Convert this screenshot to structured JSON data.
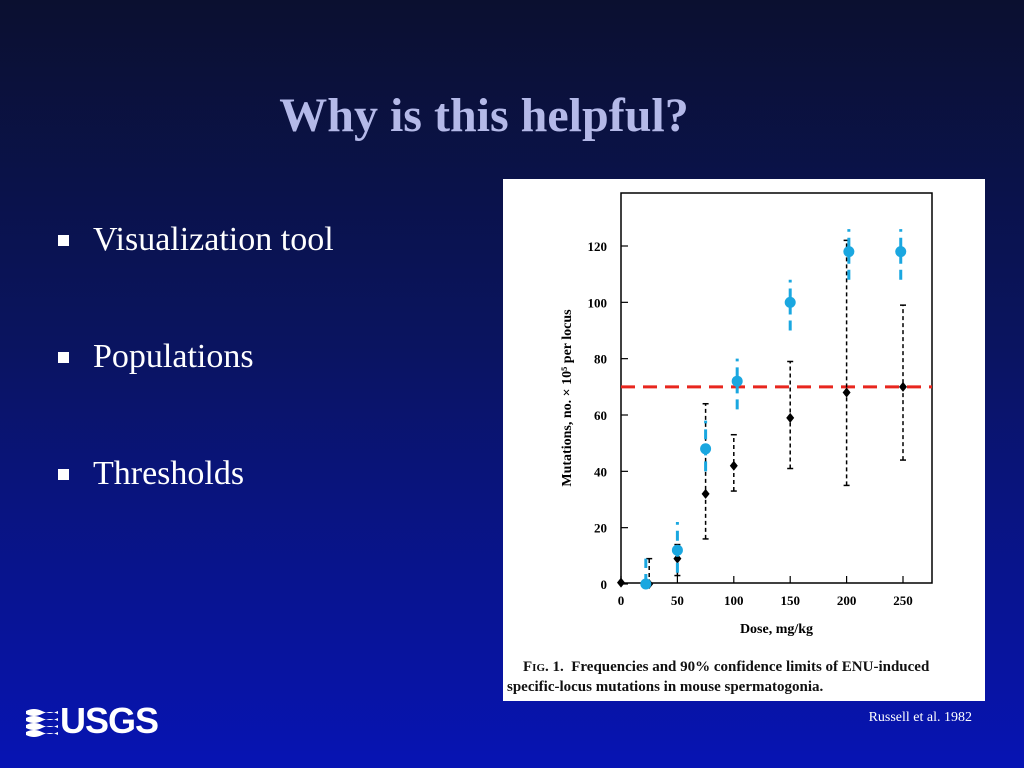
{
  "slide": {
    "title": "Why is this helpful?",
    "bullets": [
      "Visualization tool",
      "Populations",
      "Thresholds"
    ],
    "citation": "Russell et al. 1982",
    "logo_text": "USGS"
  },
  "colors": {
    "title": "#b4b9e8",
    "text": "#ffffff",
    "highlight_series": "#1aa7e0",
    "threshold_line": "#e8261e",
    "original_series": "#000000"
  },
  "figure": {
    "caption_label": "Fig. 1.",
    "caption_text": "Frequencies and 90% confidence limits of ENU-induced specific-locus mutations in mouse spermatogonia."
  },
  "chart_data": {
    "type": "scatter",
    "xlabel": "Dose, mg/kg",
    "ylabel": "Mutations, no. × 10⁵ per locus",
    "xlim": [
      0,
      275
    ],
    "ylim": [
      0,
      135
    ],
    "xticks": [
      0,
      50,
      100,
      150,
      200,
      250
    ],
    "yticks": [
      0,
      20,
      40,
      60,
      80,
      100,
      120
    ],
    "grid": false,
    "threshold": {
      "y": 70,
      "style": "dashed",
      "color": "#e8261e"
    },
    "series": [
      {
        "color": "#000000",
        "points": [
          {
            "x": 0,
            "y": 0.5,
            "low": 0.5,
            "high": 0.5
          },
          {
            "x": 25,
            "y": 0,
            "low": 0,
            "high": 9
          },
          {
            "x": 50,
            "y": 9,
            "low": 3,
            "high": 14
          },
          {
            "x": 75,
            "y": 32,
            "low": 16,
            "high": 64
          },
          {
            "x": 100,
            "y": 42,
            "low": 33,
            "high": 53
          },
          {
            "x": 150,
            "y": 59,
            "low": 41,
            "high": 79
          },
          {
            "x": 200,
            "y": 68,
            "low": 35,
            "high": 122
          },
          {
            "x": 250,
            "y": 70,
            "low": 44,
            "high": 99
          }
        ]
      },
      {
        "color": "#1aa7e0",
        "points": [
          {
            "x": 22,
            "y": 0,
            "low": 0,
            "high": 9
          },
          {
            "x": 50,
            "y": 12,
            "low": 4,
            "high": 22
          },
          {
            "x": 75,
            "y": 48,
            "low": 40,
            "high": 58
          },
          {
            "x": 103,
            "y": 72,
            "low": 62,
            "high": 80
          },
          {
            "x": 150,
            "y": 100,
            "low": 90,
            "high": 108
          },
          {
            "x": 202,
            "y": 118,
            "low": 108,
            "high": 126
          },
          {
            "x": 248,
            "y": 118,
            "low": 108,
            "high": 126
          }
        ]
      }
    ]
  }
}
